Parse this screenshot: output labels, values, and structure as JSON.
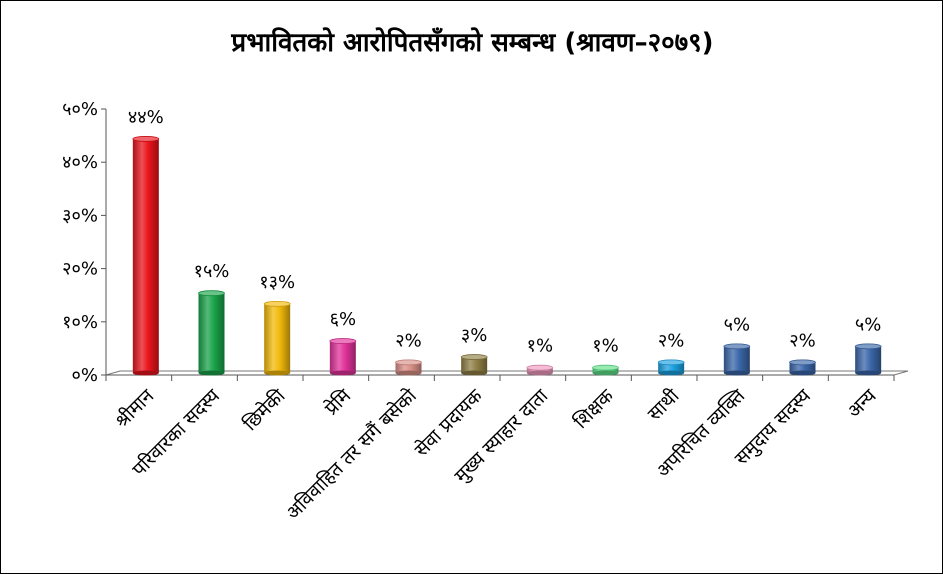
{
  "chart_data": {
    "type": "bar",
    "title": "प्रभावितको आरोपितसँगको सम्बन्ध (श्रावण–२०७९)",
    "categories": [
      "श्रीमान",
      "परिवारका सदस्य",
      "छिमेकी",
      "प्रेमि",
      "अविवाहित तर सगैं बसेको",
      "सेवा प्रदायक",
      "मुख्य स्याहार दाता",
      "शिक्षक",
      "साथी",
      "अपरिचित व्यक्ति",
      "समुदाय सदस्य",
      "अन्य"
    ],
    "values": [
      44,
      15,
      13,
      6,
      2,
      3,
      1,
      1,
      2,
      5,
      2,
      5
    ],
    "data_labels": [
      "४४%",
      "१५%",
      "१३%",
      "६%",
      "२%",
      "३%",
      "१%",
      "१%",
      "२%",
      "५%",
      "२%",
      "५%"
    ],
    "colors": [
      "#e8141b",
      "#1aa34a",
      "#f2b90a",
      "#e0329a",
      "#d98f86",
      "#8f7f45",
      "#f09ac0",
      "#5fe08a",
      "#1ba0e0",
      "#3a66a8",
      "#3a66a8",
      "#3a66a8"
    ],
    "ylim": [
      0,
      50
    ],
    "yticks": [
      0,
      10,
      20,
      30,
      40,
      50
    ],
    "ytick_labels": [
      "०%",
      "१०%",
      "२०%",
      "३०%",
      "४०%",
      "५०%"
    ],
    "xlabel": "",
    "ylabel": "",
    "grid": false,
    "legend": "none"
  }
}
